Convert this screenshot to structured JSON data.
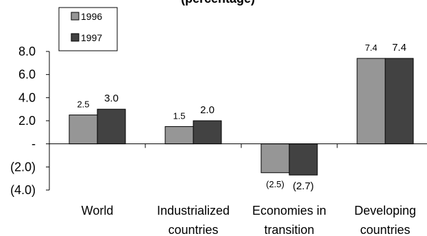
{
  "chart_data": {
    "type": "bar",
    "title": "(percentage)",
    "categories": [
      [
        "World"
      ],
      [
        "Industrialized",
        "countries"
      ],
      [
        "Economies in",
        "transition"
      ],
      [
        "Developing",
        "countries"
      ]
    ],
    "series": [
      {
        "name": "1996",
        "color": "#969696",
        "values": [
          2.5,
          1.5,
          -2.5,
          7.4
        ],
        "labels": [
          "2.5",
          "1.5",
          "(2.5)",
          "7.4"
        ]
      },
      {
        "name": "1997",
        "color": "#424242",
        "values": [
          3.0,
          2.0,
          -2.7,
          7.4
        ],
        "labels": [
          "3.0",
          "2.0",
          "(2.7)",
          "7.4"
        ]
      }
    ],
    "yticks": [
      {
        "value": 8,
        "label": "8.0"
      },
      {
        "value": 6,
        "label": "6.0"
      },
      {
        "value": 4,
        "label": "4.0"
      },
      {
        "value": 2,
        "label": "2.0"
      },
      {
        "value": 0,
        "label": "-"
      },
      {
        "value": -2,
        "label": "(2.0)"
      },
      {
        "value": -4,
        "label": "(4.0)"
      }
    ],
    "ylim": [
      -4,
      8
    ],
    "legend": {
      "position": "top-left"
    }
  }
}
